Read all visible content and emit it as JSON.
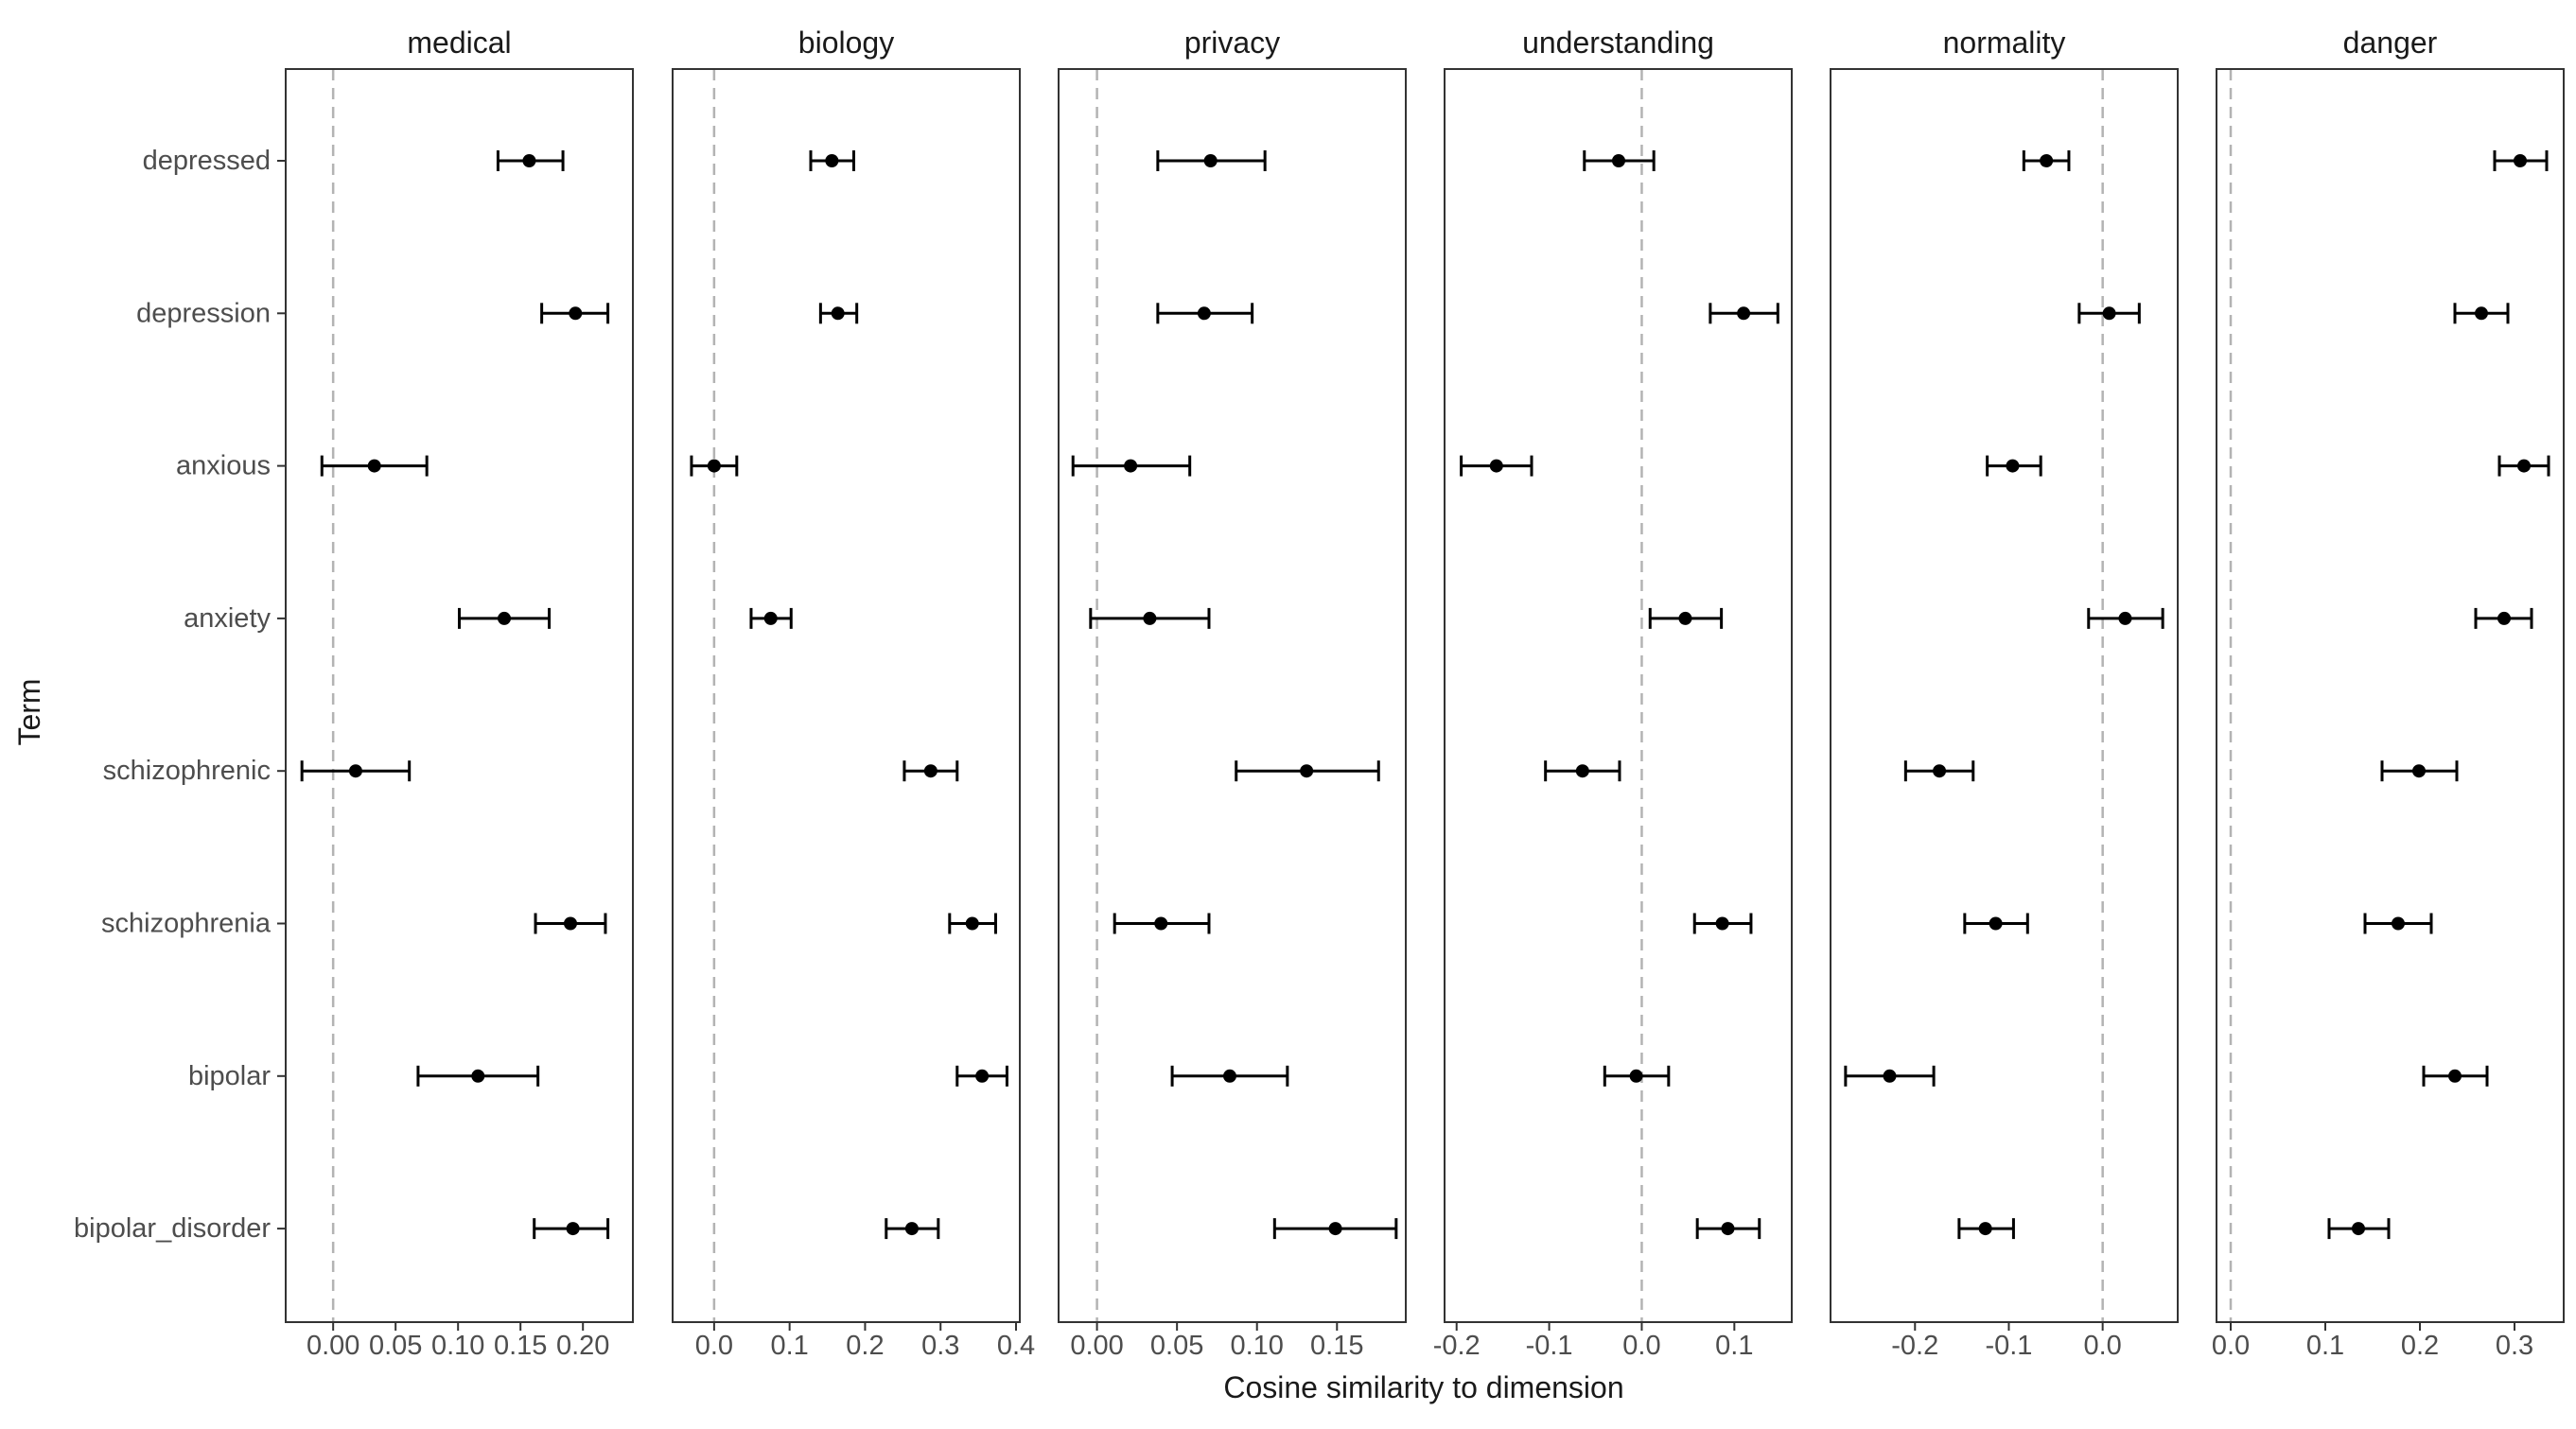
{
  "chart_data": {
    "type": "scatter",
    "subtype": "dot-and-errorbar-facets",
    "xlabel": "Cosine similarity to dimension",
    "ylabel": "Term",
    "terms": [
      "depressed",
      "depression",
      "anxious",
      "anxiety",
      "schizophrenic",
      "schizophrenia",
      "bipolar",
      "bipolar_disorder"
    ],
    "reference_line": {
      "x": 0,
      "style": "dashed",
      "color": "#b3b3b3"
    },
    "colors": {
      "point": "#000000",
      "errorbar": "#000000",
      "panel_border": "#333333",
      "tick_label": "#4d4d4d",
      "title": "#1a1a1a"
    },
    "facets": [
      {
        "title": "medical",
        "xlim": [
          -0.038,
          0.24
        ],
        "ticks": [
          0.0,
          0.05,
          0.1,
          0.15,
          0.2
        ],
        "tick_labels": [
          "0.00",
          "0.05",
          "0.10",
          "0.15",
          "0.20"
        ],
        "points": [
          {
            "term": "depressed",
            "value": 0.157,
            "lower": 0.132,
            "upper": 0.184
          },
          {
            "term": "depression",
            "value": 0.194,
            "lower": 0.167,
            "upper": 0.22
          },
          {
            "term": "anxious",
            "value": 0.033,
            "lower": -0.009,
            "upper": 0.075
          },
          {
            "term": "anxiety",
            "value": 0.137,
            "lower": 0.101,
            "upper": 0.173
          },
          {
            "term": "schizophrenic",
            "value": 0.018,
            "lower": -0.025,
            "upper": 0.061
          },
          {
            "term": "schizophrenia",
            "value": 0.19,
            "lower": 0.162,
            "upper": 0.218
          },
          {
            "term": "bipolar",
            "value": 0.116,
            "lower": 0.068,
            "upper": 0.164
          },
          {
            "term": "bipolar_disorder",
            "value": 0.192,
            "lower": 0.161,
            "upper": 0.22
          }
        ]
      },
      {
        "title": "biology",
        "xlim": [
          -0.055,
          0.405
        ],
        "ticks": [
          0.0,
          0.1,
          0.2,
          0.3,
          0.4
        ],
        "tick_labels": [
          "0.0",
          "0.1",
          "0.2",
          "0.3",
          "0.4"
        ],
        "points": [
          {
            "term": "depressed",
            "value": 0.156,
            "lower": 0.128,
            "upper": 0.185
          },
          {
            "term": "depression",
            "value": 0.164,
            "lower": 0.141,
            "upper": 0.189
          },
          {
            "term": "anxious",
            "value": 0.0,
            "lower": -0.03,
            "upper": 0.03
          },
          {
            "term": "anxiety",
            "value": 0.075,
            "lower": 0.049,
            "upper": 0.102
          },
          {
            "term": "schizophrenic",
            "value": 0.287,
            "lower": 0.252,
            "upper": 0.322
          },
          {
            "term": "schizophrenia",
            "value": 0.342,
            "lower": 0.312,
            "upper": 0.373
          },
          {
            "term": "bipolar",
            "value": 0.355,
            "lower": 0.322,
            "upper": 0.388
          },
          {
            "term": "bipolar_disorder",
            "value": 0.262,
            "lower": 0.228,
            "upper": 0.297
          }
        ]
      },
      {
        "title": "privacy",
        "xlim": [
          -0.024,
          0.193
        ],
        "ticks": [
          0.0,
          0.05,
          0.1,
          0.15
        ],
        "tick_labels": [
          "0.00",
          "0.05",
          "0.10",
          "0.15"
        ],
        "points": [
          {
            "term": "depressed",
            "value": 0.071,
            "lower": 0.038,
            "upper": 0.105
          },
          {
            "term": "depression",
            "value": 0.067,
            "lower": 0.038,
            "upper": 0.097
          },
          {
            "term": "anxious",
            "value": 0.021,
            "lower": -0.015,
            "upper": 0.058
          },
          {
            "term": "anxiety",
            "value": 0.033,
            "lower": -0.004,
            "upper": 0.07
          },
          {
            "term": "schizophrenic",
            "value": 0.131,
            "lower": 0.087,
            "upper": 0.176
          },
          {
            "term": "schizophrenia",
            "value": 0.04,
            "lower": 0.011,
            "upper": 0.07
          },
          {
            "term": "bipolar",
            "value": 0.083,
            "lower": 0.047,
            "upper": 0.119
          },
          {
            "term": "bipolar_disorder",
            "value": 0.149,
            "lower": 0.111,
            "upper": 0.187
          }
        ]
      },
      {
        "title": "understanding",
        "xlim": [
          -0.213,
          0.162
        ],
        "ticks": [
          -0.2,
          -0.1,
          0.0,
          0.1
        ],
        "tick_labels": [
          "-0.2",
          "-0.1",
          "0.0",
          "0.1"
        ],
        "points": [
          {
            "term": "depressed",
            "value": -0.025,
            "lower": -0.062,
            "upper": 0.013
          },
          {
            "term": "depression",
            "value": 0.11,
            "lower": 0.074,
            "upper": 0.147
          },
          {
            "term": "anxious",
            "value": -0.157,
            "lower": -0.195,
            "upper": -0.119
          },
          {
            "term": "anxiety",
            "value": 0.047,
            "lower": 0.009,
            "upper": 0.086
          },
          {
            "term": "schizophrenic",
            "value": -0.064,
            "lower": -0.104,
            "upper": -0.024
          },
          {
            "term": "schizophrenia",
            "value": 0.087,
            "lower": 0.057,
            "upper": 0.118
          },
          {
            "term": "bipolar",
            "value": -0.006,
            "lower": -0.04,
            "upper": 0.029
          },
          {
            "term": "bipolar_disorder",
            "value": 0.093,
            "lower": 0.06,
            "upper": 0.127
          }
        ]
      },
      {
        "title": "normality",
        "xlim": [
          -0.29,
          0.08
        ],
        "ticks": [
          -0.2,
          -0.1,
          0.0
        ],
        "tick_labels": [
          "-0.2",
          "-0.1",
          "0.0"
        ],
        "points": [
          {
            "term": "depressed",
            "value": -0.06,
            "lower": -0.084,
            "upper": -0.036
          },
          {
            "term": "depression",
            "value": 0.007,
            "lower": -0.025,
            "upper": 0.039
          },
          {
            "term": "anxious",
            "value": -0.096,
            "lower": -0.123,
            "upper": -0.066
          },
          {
            "term": "anxiety",
            "value": 0.024,
            "lower": -0.015,
            "upper": 0.064
          },
          {
            "term": "schizophrenic",
            "value": -0.174,
            "lower": -0.21,
            "upper": -0.138
          },
          {
            "term": "schizophrenia",
            "value": -0.114,
            "lower": -0.147,
            "upper": -0.08
          },
          {
            "term": "bipolar",
            "value": -0.227,
            "lower": -0.274,
            "upper": -0.18
          },
          {
            "term": "bipolar_disorder",
            "value": -0.125,
            "lower": -0.153,
            "upper": -0.095
          }
        ]
      },
      {
        "title": "danger",
        "xlim": [
          -0.015,
          0.352
        ],
        "ticks": [
          0.0,
          0.1,
          0.2,
          0.3
        ],
        "tick_labels": [
          "0.0",
          "0.1",
          "0.2",
          "0.3"
        ],
        "points": [
          {
            "term": "depressed",
            "value": 0.306,
            "lower": 0.279,
            "upper": 0.334
          },
          {
            "term": "depression",
            "value": 0.265,
            "lower": 0.237,
            "upper": 0.293
          },
          {
            "term": "anxious",
            "value": 0.31,
            "lower": 0.284,
            "upper": 0.336
          },
          {
            "term": "anxiety",
            "value": 0.289,
            "lower": 0.259,
            "upper": 0.318
          },
          {
            "term": "schizophrenic",
            "value": 0.199,
            "lower": 0.16,
            "upper": 0.239
          },
          {
            "term": "schizophrenia",
            "value": 0.177,
            "lower": 0.142,
            "upper": 0.212
          },
          {
            "term": "bipolar",
            "value": 0.237,
            "lower": 0.204,
            "upper": 0.271
          },
          {
            "term": "bipolar_disorder",
            "value": 0.135,
            "lower": 0.104,
            "upper": 0.167
          }
        ]
      }
    ]
  }
}
